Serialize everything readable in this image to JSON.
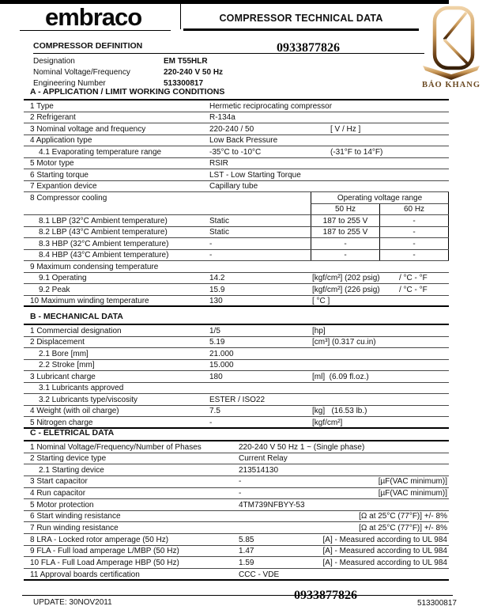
{
  "header": {
    "brand": "embraco",
    "title": "COMPRESSOR TECHNICAL DATA",
    "watermark_phone": "0933877826",
    "partner_logo": {
      "name": "BẢO KHANG",
      "monogram": "K",
      "gradient_top": "#f0d2a6",
      "gradient_mid": "#c99857",
      "gradient_bottom": "#35200a",
      "text_color": "#6b4a22"
    }
  },
  "definition": {
    "heading": "COMPRESSOR DEFINITION",
    "fields": [
      {
        "label": "Designation",
        "value": "EM T55HLR"
      },
      {
        "label": "Nominal Voltage/Frequency",
        "value": "220-240 V 50 Hz"
      },
      {
        "label": "Engineering Number",
        "value": "513300817"
      }
    ]
  },
  "voltage_header": {
    "title": "Operating voltage range",
    "col50": "50 Hz",
    "col60": "60 Hz"
  },
  "sections": [
    {
      "id": "A",
      "heading": "A - APPLICATION / LIMIT WORKING CONDITIONS",
      "rows": [
        {
          "label": "1 Type",
          "value": "Hermetic reciprocating compressor"
        },
        {
          "label": "2 Refrigerant",
          "value": "R-134a"
        },
        {
          "label": "3 Nominal voltage and frequency",
          "value": "220-240 / 50",
          "unit": "[ V / Hz ]",
          "unit_far": true
        },
        {
          "label": "4 Application type",
          "value": "Low Back Pressure"
        },
        {
          "label": "4.1 Evaporating temperature range",
          "indent": true,
          "value": "-35°C to -10°C",
          "unit": "(-31°F to 14°F)",
          "unit_far": true
        },
        {
          "label": "5 Motor type",
          "value": "RSIR"
        },
        {
          "label": "6 Starting torque",
          "value": "LST - Low Starting Torque"
        },
        {
          "label": "7 Expantion device",
          "value": "Capillary tube"
        },
        {
          "label": "8 Compressor cooling",
          "nb": true,
          "vt_header": true
        },
        {
          "vt_cols": true
        },
        {
          "label": "8.1 LBP (32°C Ambient temperature)",
          "indent": true,
          "value": "Static",
          "v50": "187 to 255 V",
          "v60": "-"
        },
        {
          "label": "8.2 LBP (43°C Ambient temperature)",
          "indent": true,
          "value": "Static",
          "v50": "187 to 255 V",
          "v60": "-"
        },
        {
          "label": "8.3 HBP (32°C Ambient temperature)",
          "indent": true,
          "value": "-",
          "v50": "-",
          "v60": "-"
        },
        {
          "label": "8.4 HBP (43°C Ambient temperature)",
          "indent": true,
          "value": "-",
          "v50": "-",
          "v60": "-"
        },
        {
          "label": "9 Maximum condensing temperature"
        },
        {
          "label": "9.1 Operating",
          "indent": true,
          "value": "14.2",
          "unit": "[kgf/cm²] (202 psig)",
          "extra": "/ °C - °F"
        },
        {
          "label": "9.2 Peak",
          "indent": true,
          "value": "15.9",
          "unit": "[kgf/cm²] (226 psig)",
          "extra": "/ °C - °F"
        },
        {
          "label": "10 Maximum winding temperature",
          "value": "130",
          "unit": "[ °C ]",
          "last": true
        }
      ]
    },
    {
      "id": "B",
      "heading": "B - MECHANICAL DATA",
      "rows": [
        {
          "label": "1 Commercial designation",
          "value": "1/5",
          "unit": "[hp]"
        },
        {
          "label": "2 Displacement",
          "value": "5.19",
          "unit": "[cm³] (0.317 cu.in)"
        },
        {
          "label": "2.1 Bore [mm]",
          "indent": true,
          "value": "21.000"
        },
        {
          "label": "2.2 Stroke [mm]",
          "indent": true,
          "value": "15.000"
        },
        {
          "label": "3 Lubricant charge",
          "value": "180",
          "unit": "[ml]  (6.09 fl.oz.)"
        },
        {
          "label": "3.1 Lubricants approved",
          "indent": true
        },
        {
          "label": "3.2 Lubricants type/viscosity",
          "indent": true,
          "value": "ESTER / ISO22"
        },
        {
          "label": "4 Weight (with oil charge)",
          "value": "7.5",
          "unit": "[kg]   (16.53 lb.)"
        },
        {
          "label": "5 Nitrogen charge",
          "value": "-",
          "unit": "[kgf/cm²]",
          "last": true
        }
      ]
    },
    {
      "id": "C",
      "heading": "C - ELETRICAL DATA",
      "rows": [
        {
          "label": "1 Nominal Voltage/Frequency/Number of Phases",
          "valc": true,
          "value": "220-240 V 50 Hz 1 ~ (Single phase)"
        },
        {
          "label": "2 Starting device type",
          "valc": true,
          "value": "Current Relay"
        },
        {
          "label": "2.1 Starting device",
          "indent": true,
          "valc": true,
          "value": "213514130"
        },
        {
          "label": "3 Start capacitor",
          "valc": true,
          "value": "-",
          "runit": "[µF(VAC minimum)]"
        },
        {
          "label": "4 Run capacitor",
          "valc": true,
          "value": "-",
          "runit": "[µF(VAC minimum)]"
        },
        {
          "label": "5 Motor protection",
          "valc": true,
          "value": "4TM739NFBYY-53"
        },
        {
          "label": "6 Start winding resistance",
          "runit": "[Ω at 25°C (77°F)] +/- 8%"
        },
        {
          "label": "7 Run winding resistance",
          "runit": "[Ω at 25°C (77°F)] +/- 8%"
        },
        {
          "label": "8 LRA - Locked rotor amperage (50 Hz)",
          "valc": true,
          "value": "5.85",
          "runit": "[A] - Measured according to UL 984"
        },
        {
          "label": "9 FLA - Full load amperage L/MBP (50 Hz)",
          "valc": true,
          "value": "1.47",
          "runit": "[A] - Measured according to UL 984"
        },
        {
          "label": "10 FLA - Full Load Amperage HBP (50 Hz)",
          "valc": true,
          "value": "1.59",
          "runit": "[A] - Measured according to UL 984"
        },
        {
          "label": "11 Approval boards certification",
          "valc": true,
          "value": "CCC - VDE",
          "last": true
        }
      ]
    }
  ],
  "footer": {
    "update": "UPDATE: 30NOV2011",
    "watermark_phone": "0933877826",
    "engineering_number": "513300817"
  }
}
